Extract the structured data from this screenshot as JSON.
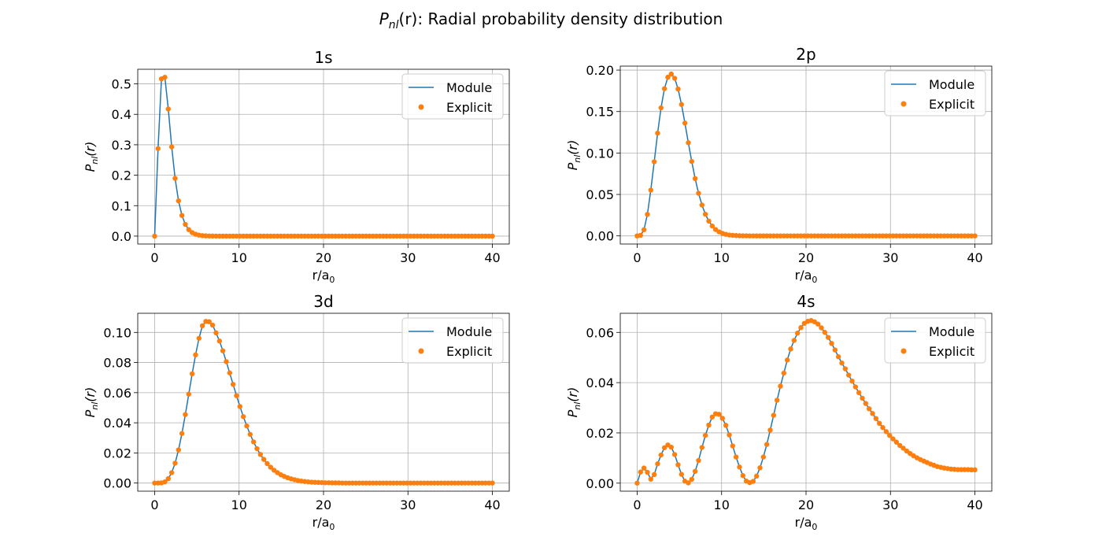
{
  "figure": {
    "suptitle_main": "P",
    "suptitle_sub": "nl",
    "suptitle_arg": "(r)",
    "suptitle_rest": ": Radial probability density distribution"
  },
  "axis_text": {
    "xlabel_main": "r/a",
    "xlabel_sub": "0",
    "ylabel_main": "P",
    "ylabel_sub": "nl",
    "ylabel_arg": "(r)"
  },
  "legend": {
    "line_label": "Module",
    "marker_label": "Explicit",
    "line_color": "#1f77b4",
    "marker_color": "#ff7f0e",
    "placement": "upper right"
  },
  "chart_data": [
    {
      "type": "line",
      "title": "1s",
      "xlim": [
        -2,
        42
      ],
      "ylim": [
        -0.026,
        0.548
      ],
      "xticks": [
        0,
        10,
        20,
        30,
        40
      ],
      "yticks": [
        0.0,
        0.1,
        0.2,
        0.3,
        0.4,
        0.5
      ],
      "ytick_labels": [
        "0.0",
        "0.1",
        "0.2",
        "0.3",
        "0.4",
        "0.5"
      ],
      "grid": true,
      "x_range": [
        0,
        40
      ],
      "points": 100,
      "series": [
        {
          "name": "Module",
          "style": "line"
        },
        {
          "name": "Explicit",
          "style": "marker"
        }
      ],
      "y": [
        0.0,
        0.2874,
        0.5163,
        0.5217,
        0.4174,
        0.293,
        0.1896,
        0.1158,
        0.0679,
        0.0385,
        0.0213,
        0.0115,
        0.0061,
        0.0032,
        0.0016,
        0.0008,
        0.0004,
        0.0002,
        0.0001,
        0.0,
        0.0,
        0.0,
        0.0,
        0.0,
        0.0,
        0.0,
        0.0,
        0.0,
        0.0,
        0.0,
        0.0,
        0.0,
        0.0,
        0.0,
        0.0,
        0.0,
        0.0,
        0.0,
        0.0,
        0.0,
        0.0,
        0.0,
        0.0,
        0.0,
        0.0,
        0.0,
        0.0,
        0.0,
        0.0,
        0.0,
        0.0,
        0.0,
        0.0,
        0.0,
        0.0,
        0.0,
        0.0,
        0.0,
        0.0,
        0.0,
        0.0,
        0.0,
        0.0,
        0.0,
        0.0,
        0.0,
        0.0,
        0.0,
        0.0,
        0.0,
        0.0,
        0.0,
        0.0,
        0.0,
        0.0,
        0.0,
        0.0,
        0.0,
        0.0,
        0.0,
        0.0,
        0.0,
        0.0,
        0.0,
        0.0,
        0.0,
        0.0,
        0.0,
        0.0,
        0.0,
        0.0,
        0.0,
        0.0,
        0.0,
        0.0,
        0.0,
        0.0,
        0.0,
        0.0,
        0.0
      ]
    },
    {
      "type": "line",
      "title": "2p",
      "xlim": [
        -2,
        42
      ],
      "ylim": [
        -0.0098,
        0.2048
      ],
      "xticks": [
        0,
        10,
        20,
        30,
        40
      ],
      "yticks": [
        0.0,
        0.05,
        0.1,
        0.15,
        0.2
      ],
      "ytick_labels": [
        "0.00",
        "0.05",
        "0.10",
        "0.15",
        "0.20"
      ],
      "grid": true,
      "x_range": [
        0,
        40
      ],
      "points": 100,
      "series": [
        {
          "name": "Module",
          "style": "line"
        },
        {
          "name": "Explicit",
          "style": "marker"
        }
      ],
      "y": [
        0.0,
        0.0007,
        0.0074,
        0.026,
        0.0552,
        0.0894,
        0.124,
        0.1545,
        0.1776,
        0.1914,
        0.1953,
        0.1901,
        0.1772,
        0.1585,
        0.1361,
        0.1124,
        0.0898,
        0.0691,
        0.0514,
        0.0372,
        0.0261,
        0.0179,
        0.0119,
        0.0077,
        0.0049,
        0.0031,
        0.0019,
        0.0011,
        0.0007,
        0.0004,
        0.0002,
        0.0001,
        0.0001,
        0.0,
        0.0,
        0.0,
        0.0,
        0.0,
        0.0,
        0.0,
        0.0,
        0.0,
        0.0,
        0.0,
        0.0,
        0.0,
        0.0,
        0.0,
        0.0,
        0.0,
        0.0,
        0.0,
        0.0,
        0.0,
        0.0,
        0.0,
        0.0,
        0.0,
        0.0,
        0.0,
        0.0,
        0.0,
        0.0,
        0.0,
        0.0,
        0.0,
        0.0,
        0.0,
        0.0,
        0.0,
        0.0,
        0.0,
        0.0,
        0.0,
        0.0,
        0.0,
        0.0,
        0.0,
        0.0,
        0.0,
        0.0,
        0.0,
        0.0,
        0.0,
        0.0,
        0.0,
        0.0,
        0.0,
        0.0,
        0.0,
        0.0,
        0.0,
        0.0,
        0.0,
        0.0,
        0.0,
        0.0,
        0.0,
        0.0,
        0.0
      ]
    },
    {
      "type": "line",
      "title": "3d",
      "xlim": [
        -2,
        42
      ],
      "ylim": [
        -0.0054,
        0.1127
      ],
      "xticks": [
        0,
        10,
        20,
        30,
        40
      ],
      "yticks": [
        0.0,
        0.02,
        0.04,
        0.06,
        0.08,
        0.1
      ],
      "ytick_labels": [
        "0.00",
        "0.02",
        "0.04",
        "0.06",
        "0.08",
        "0.10"
      ],
      "grid": true,
      "x_range": [
        0,
        40
      ],
      "points": 100,
      "series": [
        {
          "name": "Module",
          "style": "line"
        },
        {
          "name": "Explicit",
          "style": "marker"
        }
      ],
      "y": [
        0.0,
        0.0,
        0.0001,
        0.0008,
        0.0029,
        0.0069,
        0.0132,
        0.022,
        0.0329,
        0.0455,
        0.059,
        0.0725,
        0.0851,
        0.0961,
        0.1044,
        0.1073,
        0.1071,
        0.1048,
        0.0997,
        0.0943,
        0.0878,
        0.0806,
        0.0731,
        0.0655,
        0.058,
        0.0508,
        0.0441,
        0.0379,
        0.0323,
        0.0273,
        0.0228,
        0.019,
        0.0157,
        0.0129,
        0.0105,
        0.0085,
        0.0069,
        0.0055,
        0.0044,
        0.0035,
        0.0028,
        0.0022,
        0.0017,
        0.0013,
        0.001,
        0.0008,
        0.0006,
        0.0005,
        0.0004,
        0.0003,
        0.0002,
        0.0002,
        0.0001,
        0.0001,
        0.0001,
        0.0,
        0.0,
        0.0,
        0.0,
        0.0,
        0.0,
        0.0,
        0.0,
        0.0,
        0.0,
        0.0,
        0.0,
        0.0,
        0.0,
        0.0,
        0.0,
        0.0,
        0.0,
        0.0,
        0.0,
        0.0,
        0.0,
        0.0,
        0.0,
        0.0,
        0.0,
        0.0,
        0.0,
        0.0,
        0.0,
        0.0,
        0.0,
        0.0,
        0.0,
        0.0,
        0.0,
        0.0,
        0.0,
        0.0,
        0.0,
        0.0,
        0.0,
        0.0,
        0.0,
        0.0
      ]
    },
    {
      "type": "line",
      "title": "4s",
      "xlim": [
        -2,
        42
      ],
      "ylim": [
        -0.0032,
        0.0676
      ],
      "xticks": [
        0,
        10,
        20,
        30,
        40
      ],
      "yticks": [
        0.0,
        0.02,
        0.04,
        0.06
      ],
      "ytick_labels": [
        "0.00",
        "0.02",
        "0.04",
        "0.06"
      ],
      "grid": true,
      "x_range": [
        0,
        40
      ],
      "points": 100,
      "series": [
        {
          "name": "Module",
          "style": "line"
        },
        {
          "name": "Explicit",
          "style": "marker"
        }
      ],
      "y": [
        0.0,
        0.0044,
        0.006,
        0.0043,
        0.0016,
        0.0034,
        0.0077,
        0.0112,
        0.0141,
        0.0152,
        0.0143,
        0.0114,
        0.0073,
        0.0035,
        0.0008,
        0.0001,
        0.0015,
        0.0047,
        0.009,
        0.0142,
        0.019,
        0.0231,
        0.0263,
        0.0276,
        0.0274,
        0.0258,
        0.023,
        0.0192,
        0.0148,
        0.0104,
        0.0064,
        0.003,
        0.0008,
        0.0002,
        0.0007,
        0.0028,
        0.0061,
        0.0104,
        0.0154,
        0.0211,
        0.027,
        0.033,
        0.0386,
        0.0438,
        0.049,
        0.0534,
        0.0568,
        0.0597,
        0.0619,
        0.0636,
        0.0644,
        0.0647,
        0.0642,
        0.0633,
        0.0618,
        0.06,
        0.058,
        0.0556,
        0.053,
        0.0503,
        0.0478,
        0.0455,
        0.043,
        0.0406,
        0.0383,
        0.036,
        0.0338,
        0.0317,
        0.0296,
        0.0277,
        0.0257,
        0.0238,
        0.0221,
        0.0205,
        0.019,
        0.0176,
        0.0163,
        0.015,
        0.0139,
        0.0128,
        0.0118,
        0.0109,
        0.0101,
        0.0094,
        0.0088,
        0.0082,
        0.0076,
        0.0071,
        0.0066,
        0.0063,
        0.006,
        0.0058,
        0.0056,
        0.0055,
        0.0054,
        0.0054,
        0.0054,
        0.0054,
        0.0053,
        0.0053
      ]
    }
  ]
}
